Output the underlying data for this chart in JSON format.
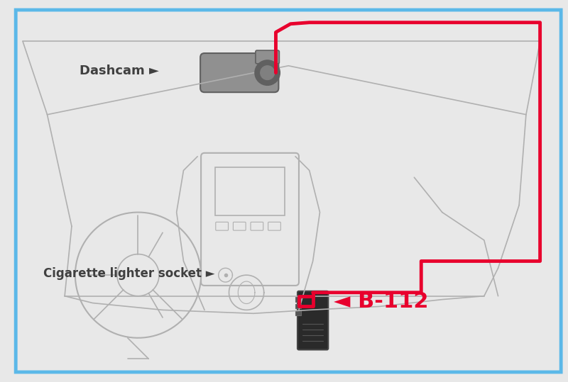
{
  "bg_color": "#e8e8e8",
  "border_color": "#5bb8e8",
  "border_linewidth": 3.5,
  "car_interior_lines_color": "#b0b0b0",
  "red_cable_color": "#e8002d",
  "red_cable_linewidth": 3.5,
  "dashcam_color_body": "#909090",
  "dashcam_color_dark": "#606060",
  "device_color": "#2a2a2a",
  "label_dashcam": "Dashcam ►",
  "label_cigarette": "Cigarette lighter socket ►",
  "label_b112": "◄ B-112",
  "label_color_dark": "#404040",
  "label_color_red": "#e8002d",
  "label_fontsize_dashcam": 13,
  "label_fontsize_cigarette": 12,
  "label_fontsize_b112": 22,
  "figsize": [
    8.0,
    5.39
  ],
  "dpi": 100
}
